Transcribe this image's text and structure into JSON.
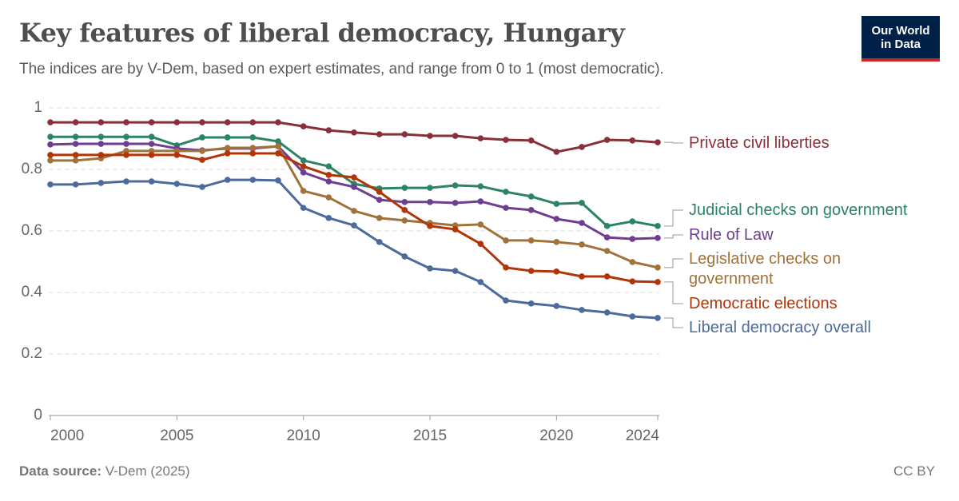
{
  "header": {
    "title": "Key features of liberal democracy, Hungary",
    "subtitle": "The indices are by V-Dem, based on expert estimates, and range from 0 to 1 (most democratic)."
  },
  "logo": "Our World in Data",
  "chart_data": {
    "type": "line",
    "x": [
      2000,
      2001,
      2002,
      2003,
      2004,
      2005,
      2006,
      2007,
      2008,
      2009,
      2010,
      2011,
      2012,
      2013,
      2014,
      2015,
      2016,
      2017,
      2018,
      2019,
      2020,
      2021,
      2022,
      2023,
      2024
    ],
    "xlim": [
      2000,
      2024
    ],
    "xticks": [
      2000,
      2005,
      2010,
      2015,
      2020,
      2024
    ],
    "ylim": [
      0,
      1
    ],
    "yticks": [
      0,
      0.2,
      0.4,
      0.6,
      0.8,
      1
    ],
    "grid": true,
    "series": [
      {
        "name": "Private civil liberties",
        "color": "#883039",
        "values": [
          0.953,
          0.953,
          0.953,
          0.953,
          0.953,
          0.953,
          0.953,
          0.953,
          0.953,
          0.953,
          0.94,
          0.927,
          0.92,
          0.914,
          0.914,
          0.909,
          0.909,
          0.901,
          0.896,
          0.894,
          0.857,
          0.873,
          0.896,
          0.894,
          0.888
        ]
      },
      {
        "name": "Judicial checks on government",
        "color": "#2c8465",
        "values": [
          0.906,
          0.906,
          0.906,
          0.906,
          0.906,
          0.878,
          0.904,
          0.904,
          0.904,
          0.891,
          0.829,
          0.81,
          0.753,
          0.738,
          0.74,
          0.74,
          0.748,
          0.745,
          0.727,
          0.712,
          0.688,
          0.691,
          0.616,
          0.631,
          0.616
        ]
      },
      {
        "name": "Rule of Law",
        "color": "#6d3e91",
        "values": [
          0.881,
          0.883,
          0.883,
          0.883,
          0.883,
          0.868,
          0.862,
          0.868,
          0.868,
          0.875,
          0.79,
          0.761,
          0.743,
          0.701,
          0.694,
          0.694,
          0.691,
          0.696,
          0.675,
          0.668,
          0.639,
          0.626,
          0.579,
          0.574,
          0.577
        ]
      },
      {
        "name": "Legislative checks on government",
        "color": "#a2723b",
        "values": [
          0.829,
          0.829,
          0.836,
          0.86,
          0.86,
          0.86,
          0.86,
          0.87,
          0.87,
          0.875,
          0.73,
          0.709,
          0.665,
          0.642,
          0.634,
          0.626,
          0.618,
          0.621,
          0.569,
          0.569,
          0.564,
          0.556,
          0.535,
          0.499,
          0.481
        ]
      },
      {
        "name": "Democratic elections",
        "color": "#b13507",
        "values": [
          0.847,
          0.847,
          0.847,
          0.847,
          0.847,
          0.847,
          0.831,
          0.852,
          0.852,
          0.852,
          0.81,
          0.782,
          0.774,
          0.727,
          0.668,
          0.616,
          0.605,
          0.558,
          0.481,
          0.47,
          0.468,
          0.452,
          0.452,
          0.436,
          0.434
        ]
      },
      {
        "name": "Liberal democracy overall",
        "color": "#4c6a9c",
        "values": [
          0.751,
          0.751,
          0.756,
          0.761,
          0.761,
          0.753,
          0.743,
          0.766,
          0.766,
          0.764,
          0.675,
          0.642,
          0.618,
          0.564,
          0.517,
          0.478,
          0.47,
          0.434,
          0.374,
          0.364,
          0.356,
          0.343,
          0.335,
          0.322,
          0.317
        ]
      }
    ]
  },
  "footer": {
    "source_label": "Data source:",
    "source": "V-Dem (2025)",
    "license": "CC BY"
  }
}
